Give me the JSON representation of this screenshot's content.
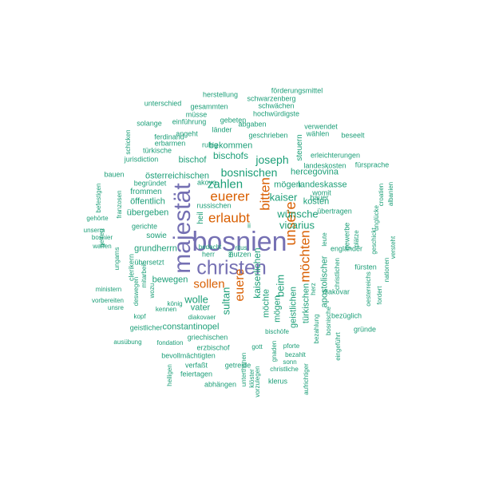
{
  "palette": {
    "green": "#1b9e77",
    "orange": "#d95f02",
    "purple": "#7570b3"
  },
  "words": [
    {
      "text": "bosnien",
      "color": "purple",
      "size": "big",
      "rotated": false
    },
    {
      "text": "christen",
      "color": "purple",
      "size": "big",
      "rotated": false
    },
    {
      "text": "majestät",
      "color": "purple",
      "size": "big",
      "rotated": true
    },
    {
      "text": "erlaubt",
      "color": "orange",
      "size": "mid",
      "rotated": false
    },
    {
      "text": "euerer",
      "color": "orange",
      "size": "mid",
      "rotated": false
    },
    {
      "text": "sollen",
      "color": "orange",
      "size": "mid",
      "rotated": false
    },
    {
      "text": "bitten",
      "color": "orange",
      "size": "mid",
      "rotated": true
    },
    {
      "text": "unsere",
      "color": "orange",
      "size": "mid",
      "rotated": true
    },
    {
      "text": "möchten",
      "color": "orange",
      "size": "mid",
      "rotated": true
    },
    {
      "text": "euere",
      "color": "orange",
      "size": "mid",
      "rotated": true
    },
    {
      "text": "zahlen",
      "color": "green",
      "size": "m",
      "rotated": false
    },
    {
      "text": "joseph",
      "color": "green",
      "size": "m",
      "rotated": false
    },
    {
      "text": "bosnischen",
      "color": "green",
      "size": "m",
      "rotated": false
    },
    {
      "text": "kaiser",
      "color": "green",
      "size": "m",
      "rotated": false
    },
    {
      "text": "vicarius",
      "color": "green",
      "size": "m",
      "rotated": false
    },
    {
      "text": "wünsche",
      "color": "green",
      "size": "m",
      "rotated": false
    },
    {
      "text": "wolle",
      "color": "green",
      "size": "m",
      "rotated": false
    },
    {
      "text": "sultan",
      "color": "green",
      "size": "m",
      "rotated": true
    },
    {
      "text": "kaiserlichen",
      "color": "green",
      "size": "m",
      "rotated": true
    },
    {
      "text": "beim",
      "color": "green",
      "size": "m",
      "rotated": true
    },
    {
      "text": "bischofs",
      "color": "green",
      "size": "s",
      "rotated": false
    },
    {
      "text": "bekommen",
      "color": "green",
      "size": "s",
      "rotated": false
    },
    {
      "text": "österreichischen",
      "color": "green",
      "size": "s",
      "rotated": false
    },
    {
      "text": "bischof",
      "color": "green",
      "size": "s",
      "rotated": false
    },
    {
      "text": "hercegovina",
      "color": "green",
      "size": "s",
      "rotated": false
    },
    {
      "text": "mögen",
      "color": "green",
      "size": "s",
      "rotated": false
    },
    {
      "text": "landeskasse",
      "color": "green",
      "size": "s",
      "rotated": false
    },
    {
      "text": "kosten",
      "color": "green",
      "size": "s",
      "rotated": false
    },
    {
      "text": "grundherrn",
      "color": "green",
      "size": "s",
      "rotated": false
    },
    {
      "text": "übergeben",
      "color": "green",
      "size": "s",
      "rotated": false
    },
    {
      "text": "öffentlich",
      "color": "green",
      "size": "s",
      "rotated": false
    },
    {
      "text": "bewegen",
      "color": "green",
      "size": "s",
      "rotated": false
    },
    {
      "text": "vater",
      "color": "green",
      "size": "s",
      "rotated": false
    },
    {
      "text": "constantinopel",
      "color": "green",
      "size": "s",
      "rotated": false
    },
    {
      "text": "möchte",
      "color": "green",
      "size": "s",
      "rotated": true
    },
    {
      "text": "mögen",
      "color": "green",
      "size": "s",
      "rotated": true
    },
    {
      "text": "geistlichen",
      "color": "green",
      "size": "s",
      "rotated": true
    },
    {
      "text": "türkischen",
      "color": "green",
      "size": "s",
      "rotated": true
    },
    {
      "text": "apostolischer",
      "color": "green",
      "size": "s",
      "rotated": true
    },
    {
      "text": "sowie",
      "color": "green",
      "size": "xs",
      "rotated": false
    },
    {
      "text": "frommen",
      "color": "green",
      "size": "xs",
      "rotated": false
    },
    {
      "text": "begründet",
      "color": "green",
      "size": "xs",
      "rotated": false
    },
    {
      "text": "bauen",
      "color": "green",
      "size": "xs",
      "rotated": false
    },
    {
      "text": "gerichte",
      "color": "green",
      "size": "xs",
      "rotated": false
    },
    {
      "text": "russischen",
      "color": "green",
      "size": "xs",
      "rotated": false
    },
    {
      "text": "akovo",
      "color": "green",
      "size": "xs",
      "rotated": false
    },
    {
      "text": "womit",
      "color": "green",
      "size": "xs",
      "rotated": false
    },
    {
      "text": "bauer",
      "color": "green",
      "size": "xs",
      "rotated": false
    },
    {
      "text": "übertragen",
      "color": "green",
      "size": "xs",
      "rotated": false
    },
    {
      "text": "ruhig",
      "color": "green",
      "size": "xs",
      "rotated": false
    },
    {
      "text": "geschrieben",
      "color": "green",
      "size": "xs",
      "rotated": false
    },
    {
      "text": "erleichterungen",
      "color": "green",
      "size": "xs",
      "rotated": false
    },
    {
      "text": "landeskosten",
      "color": "green",
      "size": "xs",
      "rotated": false
    },
    {
      "text": "fürsprache",
      "color": "green",
      "size": "xs",
      "rotated": false
    },
    {
      "text": "jurisdiction",
      "color": "green",
      "size": "xs",
      "rotated": false
    },
    {
      "text": "türkische",
      "color": "green",
      "size": "xs",
      "rotated": false
    },
    {
      "text": "erbarmen",
      "color": "green",
      "size": "xs",
      "rotated": false
    },
    {
      "text": "ferdinand",
      "color": "green",
      "size": "xs",
      "rotated": false
    },
    {
      "text": "angeht",
      "color": "green",
      "size": "xs",
      "rotated": false
    },
    {
      "text": "länder",
      "color": "green",
      "size": "xs",
      "rotated": false
    },
    {
      "text": "abgaben",
      "color": "green",
      "size": "xs",
      "rotated": false
    },
    {
      "text": "verwendet",
      "color": "green",
      "size": "xs",
      "rotated": false
    },
    {
      "text": "wählen",
      "color": "green",
      "size": "xs",
      "rotated": false
    },
    {
      "text": "beseelt",
      "color": "green",
      "size": "xs",
      "rotated": false
    },
    {
      "text": "solange",
      "color": "green",
      "size": "xs",
      "rotated": false
    },
    {
      "text": "einführung",
      "color": "green",
      "size": "xs",
      "rotated": false
    },
    {
      "text": "müsse",
      "color": "green",
      "size": "xs",
      "rotated": false
    },
    {
      "text": "gebeten",
      "color": "green",
      "size": "xs",
      "rotated": false
    },
    {
      "text": "hochwürdigste",
      "color": "green",
      "size": "xs",
      "rotated": false
    },
    {
      "text": "unterschied",
      "color": "green",
      "size": "xs",
      "rotated": false
    },
    {
      "text": "gesammten",
      "color": "green",
      "size": "xs",
      "rotated": false
    },
    {
      "text": "schwächen",
      "color": "green",
      "size": "xs",
      "rotated": false
    },
    {
      "text": "herstellung",
      "color": "green",
      "size": "xs",
      "rotated": false
    },
    {
      "text": "schwarzenberg",
      "color": "green",
      "size": "xs",
      "rotated": false
    },
    {
      "text": "förderungsmittel",
      "color": "green",
      "size": "xs",
      "rotated": false
    },
    {
      "text": "herr",
      "color": "green",
      "size": "xs",
      "rotated": false
    },
    {
      "text": "nutzen",
      "color": "green",
      "size": "xs",
      "rotated": false
    },
    {
      "text": "bedacht",
      "color": "green",
      "size": "xs",
      "rotated": false
    },
    {
      "text": "ritus",
      "color": "green",
      "size": "xs",
      "rotated": false
    },
    {
      "text": "unserm",
      "color": "green",
      "size": "xs",
      "rotated": false
    },
    {
      "text": "bosnier",
      "color": "green",
      "size": "xs",
      "rotated": false
    },
    {
      "text": "waffen",
      "color": "green",
      "size": "xs",
      "rotated": false
    },
    {
      "text": "gehörte",
      "color": "green",
      "size": "xs",
      "rotated": false
    },
    {
      "text": "übersetzt",
      "color": "green",
      "size": "xs",
      "rotated": false
    },
    {
      "text": "ministern",
      "color": "green",
      "size": "xs",
      "rotated": false
    },
    {
      "text": "vorbereiten",
      "color": "green",
      "size": "xs",
      "rotated": false
    },
    {
      "text": "unsre",
      "color": "green",
      "size": "xs",
      "rotated": false
    },
    {
      "text": "könig",
      "color": "green",
      "size": "xs",
      "rotated": false
    },
    {
      "text": "kennen",
      "color": "green",
      "size": "xs",
      "rotated": false
    },
    {
      "text": "diakovaer",
      "color": "green",
      "size": "xs",
      "rotated": false
    },
    {
      "text": "kopf",
      "color": "green",
      "size": "xs",
      "rotated": false
    },
    {
      "text": "geistlicher",
      "color": "green",
      "size": "xs",
      "rotated": false
    },
    {
      "text": "griechischen",
      "color": "green",
      "size": "xs",
      "rotated": false
    },
    {
      "text": "ausübung",
      "color": "green",
      "size": "xs",
      "rotated": false
    },
    {
      "text": "fondation",
      "color": "green",
      "size": "xs",
      "rotated": false
    },
    {
      "text": "erzbischof",
      "color": "green",
      "size": "xs",
      "rotated": false
    },
    {
      "text": "gott",
      "color": "green",
      "size": "xs",
      "rotated": false
    },
    {
      "text": "bischöfe",
      "color": "green",
      "size": "xs",
      "rotated": false
    },
    {
      "text": "pforte",
      "color": "green",
      "size": "xs",
      "rotated": false
    },
    {
      "text": "bezahlt",
      "color": "green",
      "size": "xs",
      "rotated": false
    },
    {
      "text": "sonn",
      "color": "green",
      "size": "xs",
      "rotated": false
    },
    {
      "text": "christliche",
      "color": "green",
      "size": "xs",
      "rotated": false
    },
    {
      "text": "bevollmächtigten",
      "color": "green",
      "size": "xs",
      "rotated": false
    },
    {
      "text": "verfaßt",
      "color": "green",
      "size": "xs",
      "rotated": false
    },
    {
      "text": "getreide",
      "color": "green",
      "size": "xs",
      "rotated": false
    },
    {
      "text": "feiertagen",
      "color": "green",
      "size": "xs",
      "rotated": false
    },
    {
      "text": "abhängen",
      "color": "green",
      "size": "xs",
      "rotated": false
    },
    {
      "text": "klerus",
      "color": "green",
      "size": "xs",
      "rotated": false
    },
    {
      "text": "bezüglich",
      "color": "green",
      "size": "xs",
      "rotated": false
    },
    {
      "text": "gründe",
      "color": "green",
      "size": "xs",
      "rotated": false
    },
    {
      "text": "diakovar",
      "color": "green",
      "size": "xs",
      "rotated": false
    },
    {
      "text": "fürsten",
      "color": "green",
      "size": "xs",
      "rotated": false
    },
    {
      "text": "engländer",
      "color": "green",
      "size": "xs",
      "rotated": false
    },
    {
      "text": "heil",
      "color": "green",
      "size": "xs",
      "rotated": true
    },
    {
      "text": "mi",
      "color": "green",
      "size": "xs",
      "rotated": true
    },
    {
      "text": "ii",
      "color": "green",
      "size": "xs",
      "rotated": false
    },
    {
      "text": "schicken",
      "color": "green",
      "size": "xs",
      "rotated": true
    },
    {
      "text": "steuern",
      "color": "green",
      "size": "xs",
      "rotated": true
    },
    {
      "text": "befestigen",
      "color": "green",
      "size": "xs",
      "rotated": true
    },
    {
      "text": "getreu",
      "color": "green",
      "size": "xs",
      "rotated": true
    },
    {
      "text": "ungarns",
      "color": "green",
      "size": "xs",
      "rotated": true
    },
    {
      "text": "franzosen",
      "color": "green",
      "size": "xs",
      "rotated": true
    },
    {
      "text": "clerikern",
      "color": "green",
      "size": "xs",
      "rotated": true
    },
    {
      "text": "mitarbeit",
      "color": "green",
      "size": "xs",
      "rotated": true
    },
    {
      "text": "deswegen",
      "color": "green",
      "size": "xs",
      "rotated": true
    },
    {
      "text": "wozu",
      "color": "green",
      "size": "xs",
      "rotated": true
    },
    {
      "text": "heiligen",
      "color": "green",
      "size": "xs",
      "rotated": true
    },
    {
      "text": "unterthanen",
      "color": "green",
      "size": "xs",
      "rotated": true
    },
    {
      "text": "gnaden",
      "color": "green",
      "size": "xs",
      "rotated": true
    },
    {
      "text": "vorzulegen",
      "color": "green",
      "size": "xs",
      "rotated": true
    },
    {
      "text": "klöster",
      "color": "green",
      "size": "xs",
      "rotated": true
    },
    {
      "text": "aufrichtiger",
      "color": "green",
      "size": "xs",
      "rotated": true
    },
    {
      "text": "bezahlung",
      "color": "green",
      "size": "xs",
      "rotated": true
    },
    {
      "text": "bosnische",
      "color": "green",
      "size": "xs",
      "rotated": true
    },
    {
      "text": "herz",
      "color": "green",
      "size": "xs",
      "rotated": true
    },
    {
      "text": "leute",
      "color": "green",
      "size": "xs",
      "rotated": true
    },
    {
      "text": "gewerbe",
      "color": "green",
      "size": "xs",
      "rotated": true
    },
    {
      "text": "plätze",
      "color": "green",
      "size": "xs",
      "rotated": true
    },
    {
      "text": "christlichen",
      "color": "green",
      "size": "xs",
      "rotated": true
    },
    {
      "text": "geschickt",
      "color": "green",
      "size": "xs",
      "rotated": true
    },
    {
      "text": "unglücke",
      "color": "green",
      "size": "xs",
      "rotated": true
    },
    {
      "text": "croatien",
      "color": "green",
      "size": "xs",
      "rotated": true
    },
    {
      "text": "albanien",
      "color": "green",
      "size": "xs",
      "rotated": true
    },
    {
      "text": "oesterreichs",
      "color": "green",
      "size": "xs",
      "rotated": true
    },
    {
      "text": "fordert",
      "color": "green",
      "size": "xs",
      "rotated": true
    },
    {
      "text": "nationen",
      "color": "green",
      "size": "xs",
      "rotated": true
    },
    {
      "text": "versteht",
      "color": "green",
      "size": "xs",
      "rotated": true
    },
    {
      "text": "eingeführt",
      "color": "green",
      "size": "xs",
      "rotated": true
    }
  ]
}
